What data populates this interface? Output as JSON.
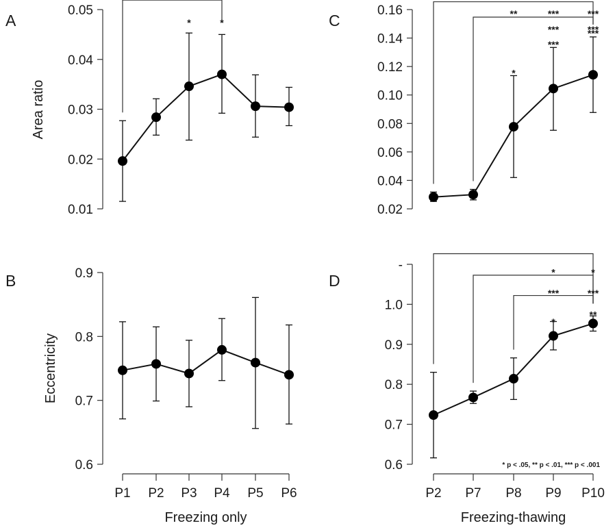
{
  "chart_data": [
    {
      "panel": "A",
      "type": "line",
      "ylabel": "Area ratio",
      "xlabel": "",
      "categories": [
        "P1",
        "P2",
        "P3",
        "P4",
        "P5",
        "P6"
      ],
      "values": [
        0.0196,
        0.0284,
        0.0346,
        0.037,
        0.0306,
        0.0304
      ],
      "err_low": [
        0.0115,
        0.0248,
        0.0238,
        0.0292,
        0.0244,
        0.0267
      ],
      "err_high": [
        0.0277,
        0.0321,
        0.0453,
        0.045,
        0.0369,
        0.0344
      ],
      "ylim": [
        0.01,
        0.05
      ],
      "yticks": [
        0.01,
        0.02,
        0.03,
        0.04,
        0.05
      ],
      "ytick_labels": [
        "0.01",
        "0.02",
        "0.03",
        "0.04",
        "0.05"
      ],
      "brackets": [
        {
          "from": "P1",
          "to": "P4",
          "level": 0.0519
        }
      ],
      "stars": [
        {
          "category": "P3",
          "text": "*",
          "y": 0.0475
        },
        {
          "category": "P4",
          "text": "*",
          "y": 0.0475
        }
      ]
    },
    {
      "panel": "C",
      "type": "line",
      "ylabel": "",
      "xlabel": "",
      "categories": [
        "P2",
        "P7",
        "P8",
        "P9",
        "P10"
      ],
      "values": [
        0.0283,
        0.03,
        0.0777,
        0.1045,
        0.1142
      ],
      "err_low": [
        0.0252,
        0.0263,
        0.042,
        0.0752,
        0.0877
      ],
      "err_high": [
        0.0318,
        0.0337,
        0.1136,
        0.1334,
        0.1408
      ],
      "ylim": [
        0.02,
        0.16
      ],
      "yticks": [
        0.02,
        0.04,
        0.06,
        0.08,
        0.1,
        0.12,
        0.14,
        0.16
      ],
      "ytick_labels": [
        "0.02",
        "0.04",
        "0.06",
        "0.08",
        "0.10",
        "0.12",
        "0.14",
        "0.16"
      ],
      "brackets": [
        {
          "from": "P2",
          "to": "P10",
          "level": 0.1655
        },
        {
          "from": "P7",
          "to": "P10",
          "level": 0.1547
        }
      ],
      "stars": [
        {
          "category": "P8",
          "text": "**",
          "y": 0.1575
        },
        {
          "category": "P9",
          "text": "***",
          "y": 0.1575
        },
        {
          "category": "P10",
          "text": "***",
          "y": 0.1575
        },
        {
          "category": "P9",
          "text": "***",
          "y": 0.1466
        },
        {
          "category": "P10",
          "text": "***",
          "y": 0.1466
        },
        {
          "category": "P8",
          "text": "*",
          "y": 0.116
        },
        {
          "category": "P9",
          "text": "***",
          "y": 0.136
        },
        {
          "category": "P10",
          "text": "***",
          "y": 0.144
        }
      ]
    },
    {
      "panel": "B",
      "type": "line",
      "ylabel": "Eccentricity",
      "xlabel": "Freezing only",
      "categories": [
        "P1",
        "P2",
        "P3",
        "P4",
        "P5",
        "P6"
      ],
      "values": [
        0.747,
        0.757,
        0.742,
        0.779,
        0.759,
        0.74
      ],
      "err_low": [
        0.671,
        0.699,
        0.69,
        0.731,
        0.656,
        0.663
      ],
      "err_high": [
        0.823,
        0.815,
        0.794,
        0.828,
        0.861,
        0.818
      ],
      "ylim": [
        0.6,
        0.9
      ],
      "yticks": [
        0.6,
        0.7,
        0.8,
        0.9
      ],
      "ytick_labels": [
        "0.6",
        "0.7",
        "0.8",
        "0.9"
      ],
      "brackets": [],
      "stars": []
    },
    {
      "panel": "D",
      "type": "line",
      "ylabel": "",
      "xlabel": "Freezing-thawing",
      "categories": [
        "P2",
        "P7",
        "P8",
        "P9",
        "P10"
      ],
      "values": [
        0.723,
        0.767,
        0.814,
        0.921,
        0.952
      ],
      "err_low": [
        0.616,
        0.752,
        0.762,
        0.886,
        0.933
      ],
      "err_high": [
        0.83,
        0.783,
        0.866,
        0.957,
        0.971
      ],
      "ylim": [
        0.6,
        1.1
      ],
      "yticks": [
        0.6,
        0.7,
        0.8,
        0.9,
        1.0,
        1.1
      ],
      "ytick_labels": [
        "0.6",
        "0.7",
        "0.8",
        "0.9",
        "1.0",
        "-"
      ],
      "brackets": [
        {
          "from": "P2",
          "to": "P10",
          "level": 1.1265
        },
        {
          "from": "P7",
          "to": "P10",
          "level": 1.0728
        },
        {
          "from": "P8",
          "to": "P10",
          "level": 1.022
        }
      ],
      "stars": [
        {
          "category": "P9",
          "text": "*",
          "y": 1.082
        },
        {
          "category": "P10",
          "text": "*",
          "y": 1.082
        },
        {
          "category": "P9",
          "text": "***",
          "y": 1.03
        },
        {
          "category": "P10",
          "text": "***",
          "y": 1.03
        },
        {
          "category": "P10",
          "text": "**",
          "y": 0.976
        },
        {
          "category": "P9",
          "text": "*",
          "y": 0.958
        }
      ],
      "note": "* p < .05, ** p < .01, *** p < .001"
    }
  ],
  "panel_labels": {
    "a": "A",
    "b": "B",
    "c": "C",
    "d": "D"
  }
}
